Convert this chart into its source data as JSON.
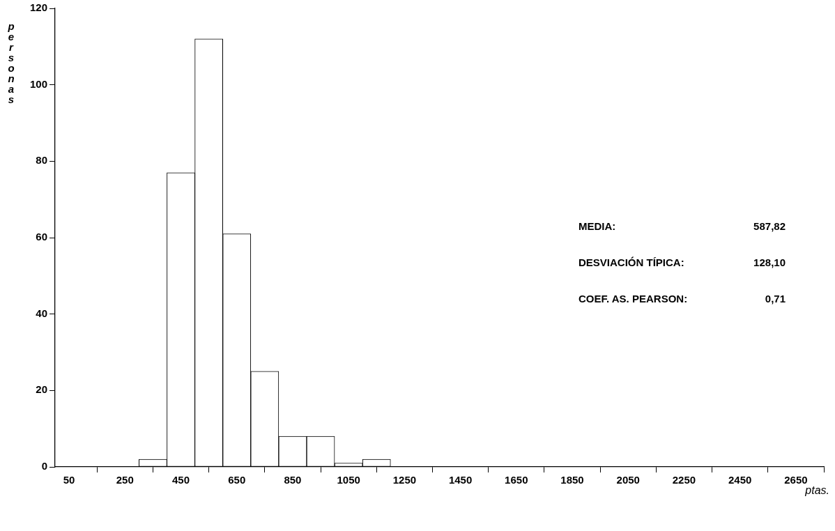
{
  "chart_data": {
    "type": "histogram",
    "xlabel": "ptas.",
    "ylabel": "personas",
    "bins": [
      300,
      400,
      500,
      600,
      700,
      800,
      900,
      1000,
      1100,
      1200
    ],
    "values": [
      2,
      77,
      112,
      61,
      25,
      8,
      8,
      1,
      2
    ],
    "color": "#ffffff",
    "xlim": [
      0,
      2750
    ],
    "xticks": [
      50,
      250,
      450,
      650,
      850,
      1050,
      1250,
      1450,
      1650,
      1850,
      2050,
      2250,
      2450,
      2650
    ],
    "ylim": [
      0,
      120
    ],
    "yticks": [
      0,
      20,
      40,
      60,
      80,
      100,
      120
    ],
    "grid": false,
    "legend": false,
    "annotations": [
      "MEDIA:",
      "587,82",
      "DESVIACIÓN TÍPICA:",
      "128,10",
      "COEF. AS. PEARSON:",
      "0,71"
    ]
  }
}
